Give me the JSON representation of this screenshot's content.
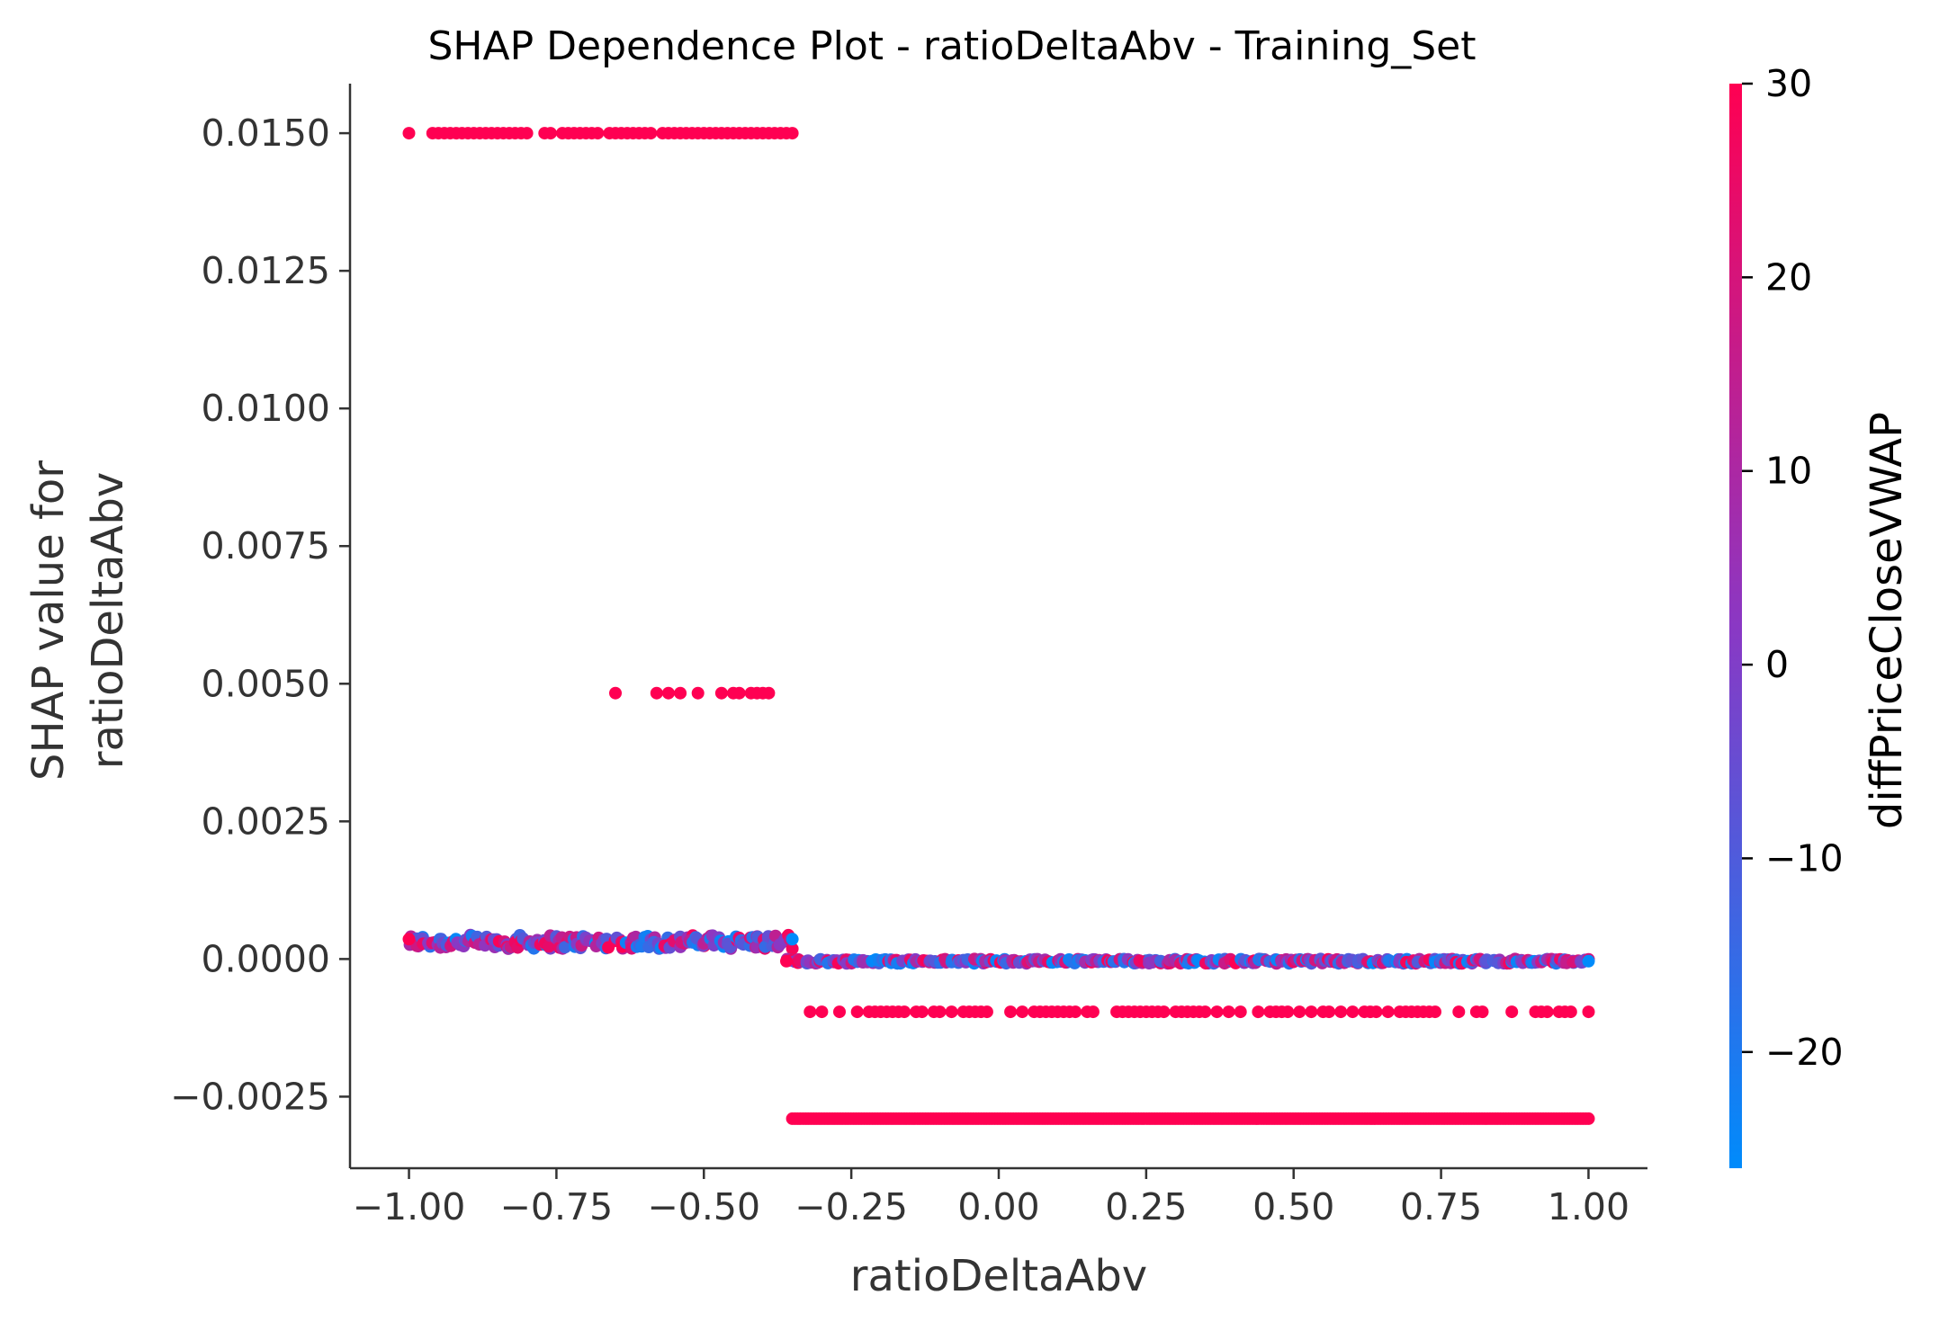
{
  "chart_data": {
    "type": "scatter",
    "title": "SHAP Dependence Plot - ratioDeltaAbv - Training_Set",
    "xlabel": "ratioDeltaAbv",
    "ylabel_lines": [
      "SHAP value for",
      "ratioDeltaAbv"
    ],
    "xlim": [
      -1.1,
      1.1
    ],
    "ylim": [
      -0.0038,
      0.0159
    ],
    "x_ticks": [
      -1.0,
      -0.75,
      -0.5,
      -0.25,
      0.0,
      0.25,
      0.5,
      0.75,
      1.0
    ],
    "x_tick_labels": [
      "−1.00",
      "−0.75",
      "−0.50",
      "−0.25",
      "0.00",
      "0.25",
      "0.50",
      "0.75",
      "1.00"
    ],
    "y_ticks": [
      -0.0025,
      0.0,
      0.0025,
      0.005,
      0.0075,
      0.01,
      0.0125,
      0.015
    ],
    "y_tick_labels": [
      "−0.0025",
      "0.0000",
      "0.0025",
      "0.0050",
      "0.0075",
      "0.0100",
      "0.0125",
      "0.0150"
    ],
    "grid": false,
    "colorbar": {
      "label": "diffPriceCloseVWAP",
      "range": [
        -26,
        30
      ],
      "ticks": [
        -20,
        -10,
        0,
        10,
        20,
        30
      ],
      "tick_labels": [
        "−20",
        "−10",
        "0",
        "10",
        "20",
        "30"
      ],
      "color_low": "#008bfb",
      "color_mid": "#8a38c4",
      "color_high": "#ff0052"
    },
    "series": [
      {
        "band": "upper-left",
        "y": 0.015,
        "x_range": [
          -1.0,
          -0.35
        ],
        "color_value": 30,
        "x": [
          -1.0,
          -0.96,
          -0.95,
          -0.94,
          -0.93,
          -0.92,
          -0.91,
          -0.9,
          -0.89,
          -0.88,
          -0.87,
          -0.86,
          -0.85,
          -0.84,
          -0.83,
          -0.82,
          -0.81,
          -0.8,
          -0.77,
          -0.76,
          -0.74,
          -0.73,
          -0.72,
          -0.71,
          -0.7,
          -0.69,
          -0.68,
          -0.66,
          -0.65,
          -0.64,
          -0.63,
          -0.62,
          -0.61,
          -0.6,
          -0.59,
          -0.57,
          -0.56,
          -0.55,
          -0.54,
          -0.53,
          -0.52,
          -0.51,
          -0.5,
          -0.49,
          -0.48,
          -0.47,
          -0.46,
          -0.45,
          -0.44,
          -0.43,
          -0.42,
          -0.41,
          -0.4,
          -0.39,
          -0.38,
          -0.37,
          -0.36,
          -0.35
        ]
      },
      {
        "band": "mid-left",
        "y": 0.00483,
        "x_range": [
          -0.65,
          -0.39
        ],
        "color_value": 30,
        "x": [
          -0.65,
          -0.58,
          -0.56,
          -0.54,
          -0.51,
          -0.47,
          -0.45,
          -0.44,
          -0.42,
          -0.41,
          -0.4,
          -0.39
        ]
      },
      {
        "band": "near-zero-left",
        "y": 0.00036,
        "x_range": [
          -1.0,
          -0.35
        ],
        "color_value": "mixed"
      },
      {
        "band": "near-zero-right",
        "y": -4e-05,
        "x_range": [
          -0.36,
          1.0
        ],
        "color_value": "mixed"
      },
      {
        "band": "lower-right",
        "y": -0.00096,
        "x_range": [
          -0.32,
          1.0
        ],
        "color_value": 30,
        "x": [
          -0.32,
          -0.3,
          -0.27,
          -0.24,
          -0.22,
          -0.21,
          -0.2,
          -0.19,
          -0.18,
          -0.17,
          -0.16,
          -0.14,
          -0.13,
          -0.11,
          -0.1,
          -0.08,
          -0.06,
          -0.05,
          -0.04,
          -0.03,
          -0.02,
          0.02,
          0.04,
          0.06,
          0.07,
          0.08,
          0.09,
          0.1,
          0.11,
          0.12,
          0.13,
          0.15,
          0.16,
          0.2,
          0.21,
          0.22,
          0.23,
          0.24,
          0.25,
          0.26,
          0.27,
          0.28,
          0.3,
          0.31,
          0.32,
          0.33,
          0.34,
          0.35,
          0.37,
          0.39,
          0.41,
          0.44,
          0.46,
          0.47,
          0.48,
          0.49,
          0.51,
          0.53,
          0.55,
          0.56,
          0.58,
          0.6,
          0.62,
          0.63,
          0.64,
          0.66,
          0.68,
          0.69,
          0.7,
          0.71,
          0.72,
          0.73,
          0.74,
          0.78,
          0.81,
          0.82,
          0.87,
          0.91,
          0.92,
          0.93,
          0.95,
          0.96,
          0.97,
          1.0
        ]
      },
      {
        "band": "bottom-right",
        "y": -0.0029,
        "x_range": [
          -0.35,
          1.0
        ],
        "color_value": 30
      }
    ]
  }
}
